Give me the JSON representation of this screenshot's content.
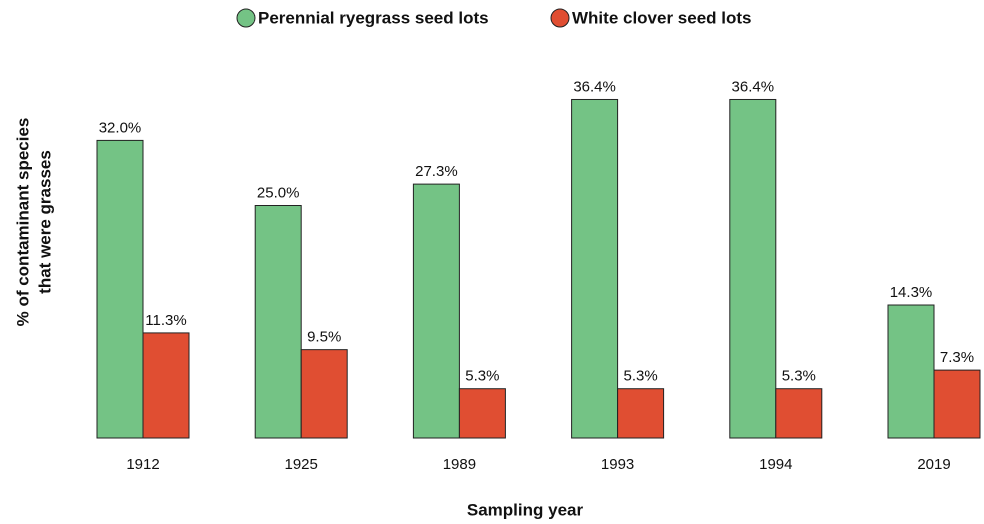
{
  "chart_data": {
    "type": "bar",
    "categories": [
      "1912",
      "1925",
      "1989",
      "1993",
      "1994",
      "2019"
    ],
    "series": [
      {
        "name": "Perennial ryegrass seed lots",
        "color": "#74c385",
        "values": [
          32.0,
          25.0,
          27.3,
          36.4,
          36.4,
          14.3
        ],
        "value_labels": [
          "32.0%",
          "25.0%",
          "27.3%",
          "36.4%",
          "36.4%",
          "14.3%"
        ]
      },
      {
        "name": "White clover seed lots",
        "color": "#e04e32",
        "values": [
          11.3,
          9.5,
          5.3,
          5.3,
          5.3,
          7.3
        ],
        "value_labels": [
          "11.3%",
          "9.5%",
          "5.3%",
          "5.3%",
          "5.3%",
          "7.3%"
        ]
      }
    ],
    "ylabel": [
      "% of contaminant species",
      "that were grasses"
    ],
    "xlabel": "Sampling year",
    "ylim": [
      0,
      40
    ],
    "legend": "top"
  }
}
